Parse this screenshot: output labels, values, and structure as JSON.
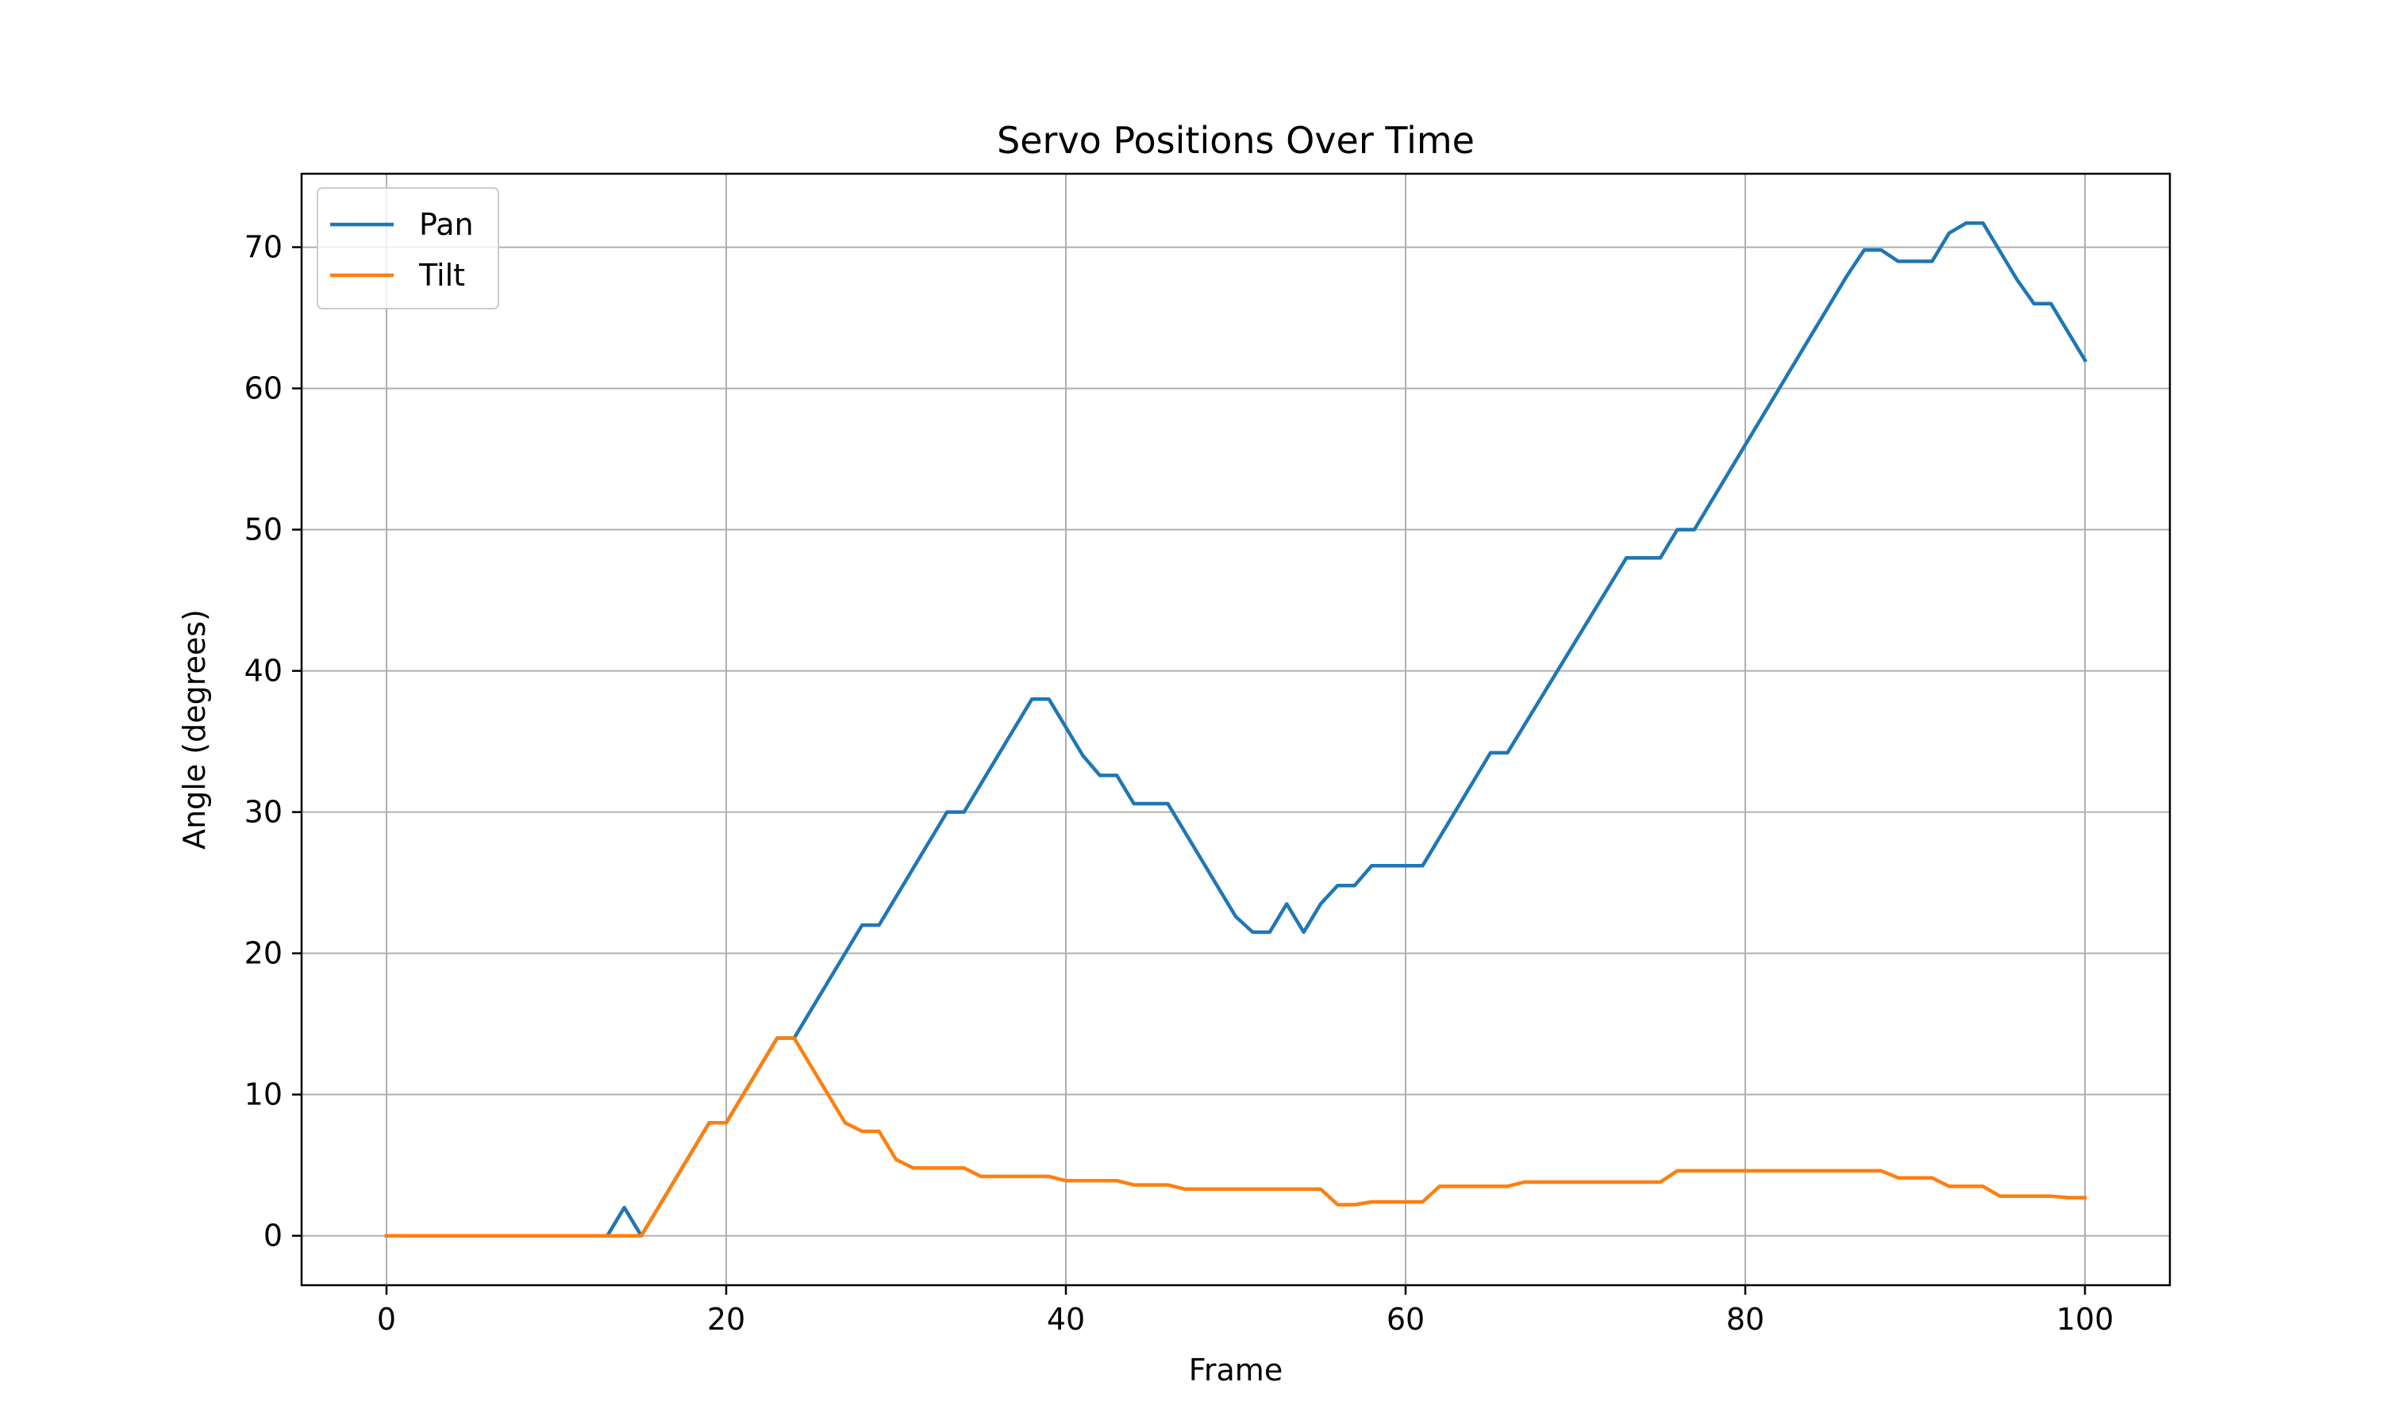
{
  "chart_data": {
    "type": "line",
    "title": "Servo Positions Over Time",
    "xlabel": "Frame",
    "ylabel": "Angle (degrees)",
    "xlim": [
      -5,
      105
    ],
    "ylim": [
      -3.5,
      75.2
    ],
    "xticks": [
      0,
      20,
      40,
      60,
      80,
      100
    ],
    "yticks": [
      0,
      10,
      20,
      30,
      40,
      50,
      60,
      70
    ],
    "grid": true,
    "legend_position": "top-left",
    "series": [
      {
        "name": "Pan",
        "color": "#1f77b4",
        "points": [
          [
            0,
            0
          ],
          [
            13,
            0
          ],
          [
            14,
            2
          ],
          [
            15,
            0
          ],
          [
            19,
            8
          ],
          [
            20,
            8
          ],
          [
            23,
            14
          ],
          [
            24,
            14
          ],
          [
            28,
            22
          ],
          [
            29,
            22
          ],
          [
            33,
            30
          ],
          [
            34,
            30
          ],
          [
            38,
            38
          ],
          [
            39,
            38
          ],
          [
            41,
            34
          ],
          [
            42,
            32.6
          ],
          [
            43,
            32.6
          ],
          [
            44,
            30.6
          ],
          [
            46,
            30.6
          ],
          [
            50,
            22.6
          ],
          [
            51,
            21.5
          ],
          [
            52,
            21.5
          ],
          [
            53,
            23.5
          ],
          [
            54,
            21.5
          ],
          [
            55,
            23.5
          ],
          [
            56,
            24.8
          ],
          [
            57,
            24.8
          ],
          [
            58,
            26.2
          ],
          [
            61,
            26.2
          ],
          [
            65,
            34.2
          ],
          [
            66,
            34.2
          ],
          [
            73,
            48
          ],
          [
            75,
            48
          ],
          [
            76,
            50
          ],
          [
            77,
            50
          ],
          [
            86,
            68
          ],
          [
            87,
            69.8
          ],
          [
            88,
            69.8
          ],
          [
            89,
            69
          ],
          [
            91,
            69
          ],
          [
            92,
            71
          ],
          [
            93,
            71.7
          ],
          [
            94,
            71.7
          ],
          [
            95,
            69.7
          ],
          [
            96,
            67.7
          ],
          [
            97,
            66
          ],
          [
            98,
            66
          ],
          [
            100,
            62
          ]
        ]
      },
      {
        "name": "Tilt",
        "color": "#ff7f0e",
        "points": [
          [
            0,
            0
          ],
          [
            15,
            0
          ],
          [
            19,
            8
          ],
          [
            20,
            8
          ],
          [
            23,
            14
          ],
          [
            24,
            14
          ],
          [
            27,
            8
          ],
          [
            28,
            7.4
          ],
          [
            29,
            7.4
          ],
          [
            30,
            5.4
          ],
          [
            31,
            4.8
          ],
          [
            34,
            4.8
          ],
          [
            35,
            4.2
          ],
          [
            39,
            4.2
          ],
          [
            40,
            3.9
          ],
          [
            43,
            3.9
          ],
          [
            44,
            3.6
          ],
          [
            46,
            3.6
          ],
          [
            47,
            3.3
          ],
          [
            55,
            3.3
          ],
          [
            56,
            2.2
          ],
          [
            57,
            2.2
          ],
          [
            58,
            2.4
          ],
          [
            61,
            2.4
          ],
          [
            62,
            3.5
          ],
          [
            66,
            3.5
          ],
          [
            67,
            3.8
          ],
          [
            75,
            3.8
          ],
          [
            76,
            4.6
          ],
          [
            88,
            4.6
          ],
          [
            89,
            4.1
          ],
          [
            91,
            4.1
          ],
          [
            92,
            3.5
          ],
          [
            94,
            3.5
          ],
          [
            95,
            2.8
          ],
          [
            98,
            2.8
          ],
          [
            99,
            2.7
          ],
          [
            100,
            2.7
          ]
        ]
      }
    ]
  }
}
